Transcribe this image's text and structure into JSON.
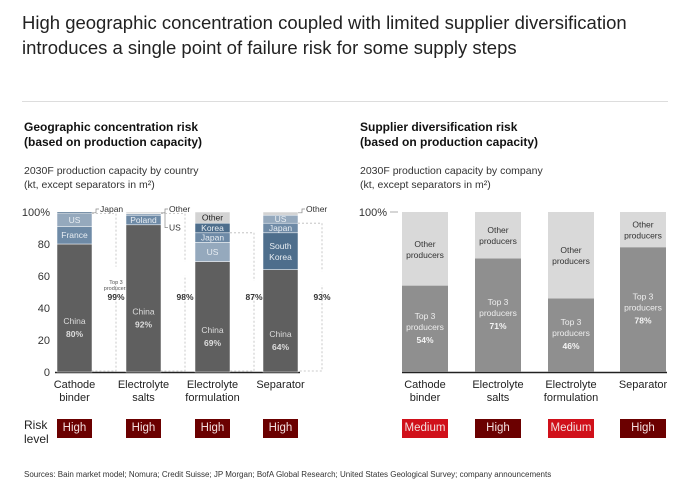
{
  "headline": "High geographic concentration coupled with limited supplier diversification introduces a single point of failure risk for some supply steps",
  "colors": {
    "china": "#5f5f5f",
    "blue_dark": "#4e6e8c",
    "blue_mid": "#6e8aa6",
    "blue_light": "#95a9bd",
    "other": "#d3d3d3",
    "top3": "#8f8f8f",
    "other_producers": "#d9d9d9",
    "risk_high": "#6b0000",
    "risk_medium": "#d0101a"
  },
  "left": {
    "title_line1": "Geographic concentration risk",
    "title_line2": "(based on production capacity)",
    "sub_line1": "2030F production capacity by country",
    "sub_line2": "(kt, except separators in m²)"
  },
  "right": {
    "title_line1": "Supplier diversification risk",
    "title_line2": "(based on production capacity)",
    "sub_line1": "2030F production capacity by company",
    "sub_line2": "(kt, except separators in m²)"
  },
  "risk_label_line1": "Risk",
  "risk_label_line2": "level",
  "sources": "Sources: Bain market model; Nomura; Credit Suisse; JP Morgan; BofA Global Research; United States Geological Survey; company announcements",
  "chart_data": [
    {
      "type": "bar",
      "stacked": true,
      "title": "Geographic concentration risk (based on production capacity)",
      "subtitle": "2030F production capacity by country (kt, except separators in m²)",
      "categories": [
        "Cathode binder",
        "Electrolyte salts",
        "Electrolyte formulation",
        "Separator"
      ],
      "category_lines": [
        [
          "Cathode",
          "binder"
        ],
        [
          "Electrolyte",
          "salts"
        ],
        [
          "Electrolyte",
          "formulation"
        ],
        [
          "Separator"
        ]
      ],
      "ylim": [
        0,
        100
      ],
      "yticks": [
        "0",
        "20",
        "40",
        "60",
        "80",
        "100%"
      ],
      "bars": [
        {
          "segments": [
            {
              "name": "China",
              "value": 80,
              "label": "China",
              "pct": "80%",
              "color": "china"
            },
            {
              "name": "France",
              "value": 11,
              "label": "France",
              "color": "blue_mid"
            },
            {
              "name": "US",
              "value": 8,
              "label": "US",
              "color": "blue_light"
            },
            {
              "name": "Japan",
              "value": 1,
              "label": "",
              "callout": "Japan",
              "color": "blue_dark"
            }
          ],
          "top3_label": "Top 3 producers",
          "top3": "99%",
          "risk": "High"
        },
        {
          "segments": [
            {
              "name": "China",
              "value": 92,
              "label": "China",
              "pct": "92%",
              "color": "china"
            },
            {
              "name": "Poland",
              "value": 6,
              "label": "Poland",
              "color": "blue_mid"
            },
            {
              "name": "US",
              "value": 1,
              "label": "",
              "callout": "US",
              "color": "blue_light"
            },
            {
              "name": "Other",
              "value": 1,
              "label": "",
              "callout": "Other",
              "color": "other"
            }
          ],
          "top3": "98%",
          "risk": "High"
        },
        {
          "segments": [
            {
              "name": "China",
              "value": 69,
              "label": "China",
              "pct": "69%",
              "color": "china"
            },
            {
              "name": "US",
              "value": 12,
              "label": "US",
              "color": "blue_light"
            },
            {
              "name": "Japan",
              "value": 6,
              "label": "Japan",
              "color": "blue_mid"
            },
            {
              "name": "Korea",
              "value": 6,
              "label": "Korea",
              "color": "blue_dark"
            },
            {
              "name": "Other",
              "value": 7,
              "label": "Other",
              "color": "other"
            }
          ],
          "top3": "87%",
          "risk": "High"
        },
        {
          "segments": [
            {
              "name": "China",
              "value": 64,
              "label": "China",
              "pct": "64%",
              "color": "china"
            },
            {
              "name": "South Korea",
              "value": 23,
              "label": "South Korea",
              "color": "blue_dark"
            },
            {
              "name": "Japan",
              "value": 6,
              "label": "Japan",
              "color": "blue_mid"
            },
            {
              "name": "US",
              "value": 5,
              "label": "US",
              "color": "blue_light"
            },
            {
              "name": "Other",
              "value": 2,
              "label": "",
              "callout": "Other",
              "color": "other"
            }
          ],
          "top3": "93%",
          "risk": "High"
        }
      ]
    },
    {
      "type": "bar",
      "stacked": true,
      "title": "Supplier diversification risk (based on production capacity)",
      "subtitle": "2030F production capacity by company (kt, except separators in m²)",
      "categories": [
        "Cathode binder",
        "Electrolyte salts",
        "Electrolyte formulation",
        "Separator"
      ],
      "category_lines": [
        [
          "Cathode",
          "binder"
        ],
        [
          "Electrolyte",
          "salts"
        ],
        [
          "Electrolyte",
          "formulation"
        ],
        [
          "Separator"
        ]
      ],
      "ylim": [
        0,
        100
      ],
      "yticks": [
        "100%"
      ],
      "series": [
        {
          "name": "Top 3 producers",
          "values": [
            54,
            71,
            46,
            78
          ]
        },
        {
          "name": "Other producers",
          "values": [
            46,
            29,
            54,
            22
          ]
        }
      ],
      "risk": [
        "Medium",
        "High",
        "Medium",
        "High"
      ]
    }
  ]
}
